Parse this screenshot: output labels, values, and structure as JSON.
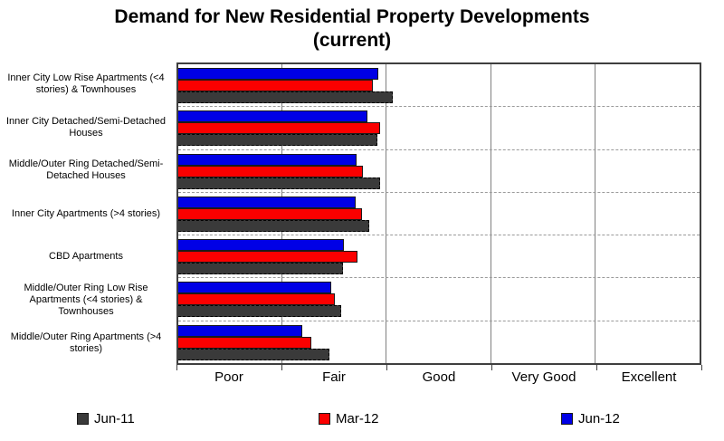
{
  "title": {
    "line1": "Demand for New Residential Property Developments",
    "line2": "(current)"
  },
  "chart_data": {
    "type": "bar",
    "orientation": "horizontal",
    "title": "Demand for New Residential Property Developments (current)",
    "categories": [
      "Inner City Low Rise Apartments (<4 stories) & Townhouses",
      "Inner City Detached/Semi-Detached Houses",
      "Middle/Outer Ring Detached/Semi-Detached Houses",
      "Inner City Apartments (>4 stories)",
      "CBD Apartments",
      "Middle/Outer Ring Low Rise Apartments (<4 stories) & Townhouses",
      "Middle/Outer Ring Apartments (>4 stories)"
    ],
    "series": [
      {
        "name": "Jun-12",
        "key": "jun12",
        "color": "#0000e6",
        "values": [
          1.92,
          1.81,
          1.71,
          1.7,
          1.59,
          1.47,
          1.19
        ]
      },
      {
        "name": "Mar-12",
        "key": "mar12",
        "color": "#fb0000",
        "values": [
          1.87,
          1.94,
          1.77,
          1.76,
          1.72,
          1.5,
          1.28
        ]
      },
      {
        "name": "Jun-11",
        "key": "jun11",
        "color": "#3a3a3a",
        "values": [
          2.06,
          1.91,
          1.94,
          1.83,
          1.58,
          1.56,
          1.45
        ]
      }
    ],
    "bar_order_top_to_bottom": [
      "Jun-12",
      "Mar-12",
      "Jun-11"
    ],
    "x_axis": {
      "labels": [
        "Poor",
        "Fair",
        "Good",
        "Very Good",
        "Excellent"
      ],
      "min": 0,
      "max": 5,
      "gridlines_at": [
        1,
        2,
        3,
        4
      ],
      "grid": true
    },
    "legend": {
      "position": "bottom",
      "entries": [
        "Jun-11",
        "Mar-12",
        "Jun-12"
      ],
      "colors": [
        "#3a3a3a",
        "#fb0000",
        "#0000e6"
      ]
    }
  }
}
